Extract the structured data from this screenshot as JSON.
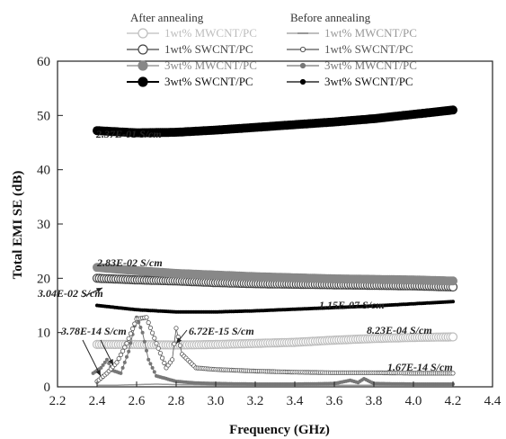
{
  "chart_data": {
    "type": "line",
    "xlabel": "Frequency (GHz)",
    "ylabel": "Total EMI SE (dB)",
    "xlim": [
      2.2,
      4.4
    ],
    "ylim": [
      0,
      60
    ],
    "xticks": [
      "2.2",
      "2.4",
      "2.6",
      "2.8",
      "3.0",
      "3.2",
      "3.4",
      "3.6",
      "3.8",
      "4.0",
      "4.2",
      "4.4"
    ],
    "yticks": [
      "0",
      "10",
      "20",
      "30",
      "40",
      "50",
      "60"
    ],
    "legend": {
      "placement": "top",
      "groups": [
        {
          "title": "After annealing",
          "entries": [
            "1wt% MWCNT/PC",
            "1wt% SWCNT/PC",
            "3wt% MWCNT/PC",
            "3wt% SWCNT/PC"
          ]
        },
        {
          "title": "Before annealing",
          "entries": [
            "1wt% MWCNT/PC",
            "1wt% SWCNT/PC",
            "3wt% MWCNT/PC",
            "3wt% SWCNT/PC"
          ]
        }
      ]
    },
    "series": [
      {
        "name": "1wt% MWCNT/PC",
        "group": "After annealing",
        "color": "#bdbdbd",
        "marker": "open-circle",
        "x": [
          2.4,
          2.6,
          2.8,
          3.0,
          3.2,
          3.4,
          3.6,
          3.8,
          4.0,
          4.2
        ],
        "y": [
          7.8,
          7.8,
          7.7,
          7.8,
          8.0,
          8.2,
          8.6,
          8.9,
          9.1,
          9.2
        ]
      },
      {
        "name": "1wt% SWCNT/PC",
        "group": "After annealing",
        "color": "#444444",
        "marker": "open-circle",
        "x": [
          2.4,
          2.6,
          2.8,
          3.0,
          3.2,
          3.4,
          3.6,
          3.8,
          4.0,
          4.2
        ],
        "y": [
          20.0,
          19.7,
          19.5,
          19.2,
          19.0,
          18.9,
          18.8,
          18.7,
          18.6,
          18.4
        ]
      },
      {
        "name": "3wt% MWCNT/PC",
        "group": "After annealing",
        "color": "#888888",
        "marker": "filled-circle",
        "x": [
          2.4,
          2.6,
          2.8,
          3.0,
          3.2,
          3.4,
          3.6,
          3.8,
          4.0,
          4.2
        ],
        "y": [
          22.0,
          21.4,
          20.9,
          20.6,
          20.3,
          20.1,
          19.9,
          19.8,
          19.7,
          19.5
        ]
      },
      {
        "name": "3wt% SWCNT/PC",
        "group": "After annealing",
        "color": "#000000",
        "marker": "filled-circle",
        "x": [
          2.4,
          2.6,
          2.8,
          3.0,
          3.2,
          3.4,
          3.6,
          3.8,
          4.0,
          4.2
        ],
        "y": [
          47.2,
          46.8,
          46.9,
          47.3,
          47.8,
          48.3,
          48.8,
          49.4,
          50.2,
          51.0
        ]
      },
      {
        "name": "1wt% MWCNT/PC",
        "group": "Before annealing",
        "color": "#999999",
        "marker": "dash",
        "x": [
          2.4,
          2.5,
          2.6,
          2.7,
          2.8,
          3.0,
          3.2,
          3.4,
          3.6,
          3.8,
          4.0,
          4.2
        ],
        "y": [
          0.3,
          0.3,
          0.4,
          0.5,
          0.4,
          0.3,
          0.3,
          0.3,
          0.3,
          0.3,
          0.3,
          0.3
        ]
      },
      {
        "name": "1wt% SWCNT/PC",
        "group": "Before annealing",
        "color": "#555555",
        "marker": "small-open-circle",
        "x": [
          2.4,
          2.45,
          2.5,
          2.55,
          2.6,
          2.65,
          2.7,
          2.75,
          2.78,
          2.8,
          2.83,
          2.9,
          3.0,
          3.2,
          3.4,
          3.6,
          3.8,
          4.0,
          4.2
        ],
        "y": [
          1.0,
          2.5,
          4.5,
          8.0,
          12.5,
          12.8,
          8.0,
          3.5,
          5.0,
          10.8,
          6.0,
          3.5,
          3.2,
          2.9,
          2.7,
          2.6,
          2.6,
          2.5,
          2.5
        ]
      },
      {
        "name": "3wt% MWCNT/PC",
        "group": "Before annealing",
        "color": "#777777",
        "marker": "small-filled-circle",
        "x": [
          2.38,
          2.42,
          2.45,
          2.48,
          2.52,
          2.56,
          2.6,
          2.63,
          2.66,
          2.7,
          2.8,
          2.9,
          3.0,
          3.2,
          3.4,
          3.6,
          3.68,
          3.72,
          3.75,
          3.8,
          4.0,
          4.2
        ],
        "y": [
          2.5,
          3.5,
          5.0,
          3.0,
          2.5,
          6.5,
          12.8,
          10.0,
          5.0,
          2.0,
          1.0,
          0.7,
          0.6,
          0.5,
          0.5,
          0.6,
          1.2,
          0.8,
          1.5,
          0.6,
          0.5,
          0.5
        ]
      },
      {
        "name": "3wt% SWCNT/PC",
        "group": "Before annealing",
        "color": "#000000",
        "marker": "small-filled-circle",
        "x": [
          2.4,
          2.6,
          2.8,
          3.0,
          3.2,
          3.4,
          3.6,
          3.8,
          4.0,
          4.2
        ],
        "y": [
          15.0,
          14.2,
          13.8,
          13.8,
          14.0,
          14.3,
          14.6,
          14.9,
          15.3,
          15.7
        ]
      }
    ],
    "annotations": [
      {
        "text": "2.37E-01 S/cm"
      },
      {
        "text": "2.83E-02 S/cm"
      },
      {
        "text": "3.04E-02 S/cm"
      },
      {
        "text": "1.15E-07 S/cm"
      },
      {
        "text": "3.78E-14 S/cm"
      },
      {
        "text": "6.72E-15 S/cm"
      },
      {
        "text": "8.23E-04 S/cm"
      },
      {
        "text": "1.67E-14 S/cm"
      }
    ]
  }
}
